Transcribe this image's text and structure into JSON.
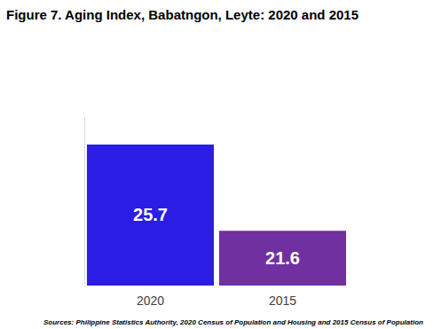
{
  "chart_data": {
    "type": "bar",
    "title": "Figure 7. Aging Index, Babatngon, Leyte: 2020 and 2015",
    "source": "Sources: Philippine Statistics Authority, 2020 Census of Population and Housing and 2015 Census of Population",
    "categories": [
      "2020",
      "2015"
    ],
    "values": [
      25.7,
      21.6
    ],
    "colors": [
      "#2B1DE3",
      "#7030A0"
    ],
    "ylim": [
      19,
      27
    ],
    "grid": false,
    "data_labels": true,
    "tick_labels": "x"
  }
}
